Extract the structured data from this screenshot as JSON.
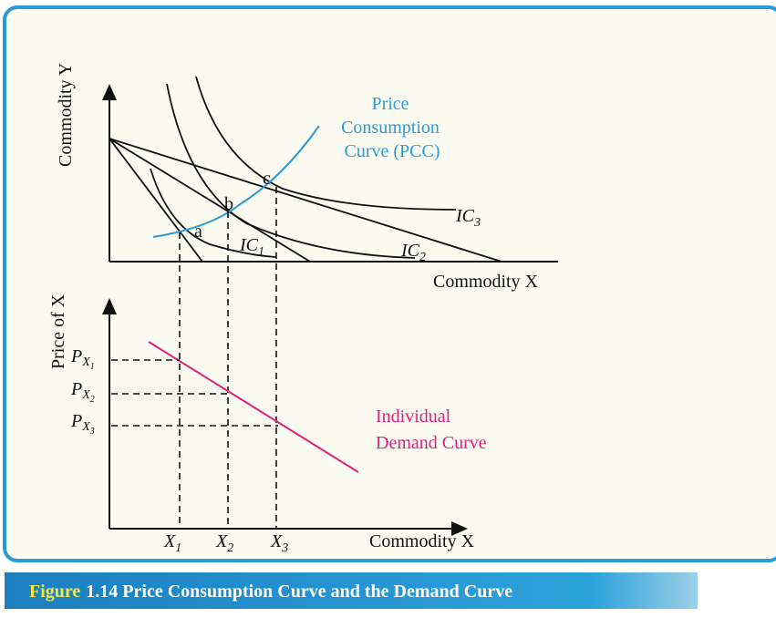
{
  "top_graph": {
    "y_axis_label": "Commodity Y",
    "x_axis_label": "Commodity X",
    "pcc_label": [
      "Price",
      "Consumption",
      "Curve (PCC)"
    ],
    "points": [
      "a",
      "b",
      "c"
    ],
    "indifference_curves": [
      {
        "label": "IC",
        "subscript": "1"
      },
      {
        "label": "IC",
        "subscript": "2"
      },
      {
        "label": "IC",
        "subscript": "3"
      }
    ]
  },
  "bottom_graph": {
    "y_axis_label": "Price of X",
    "x_axis_label": "Commodity X",
    "prices": [
      {
        "label": "P",
        "subscript": "X",
        "sub_subscript": "1"
      },
      {
        "label": "P",
        "subscript": "X",
        "sub_subscript": "2"
      },
      {
        "label": "P",
        "subscript": "X",
        "sub_subscript": "3"
      }
    ],
    "quantities": [
      {
        "label": "X",
        "subscript": "1"
      },
      {
        "label": "X",
        "subscript": "2"
      },
      {
        "label": "X",
        "subscript": "3"
      }
    ],
    "demand_label": [
      "Individual",
      "Demand Curve"
    ]
  },
  "caption": {
    "figure_word": "Figure",
    "text": "1.14 Price Consumption Curve and the Demand Curve"
  }
}
